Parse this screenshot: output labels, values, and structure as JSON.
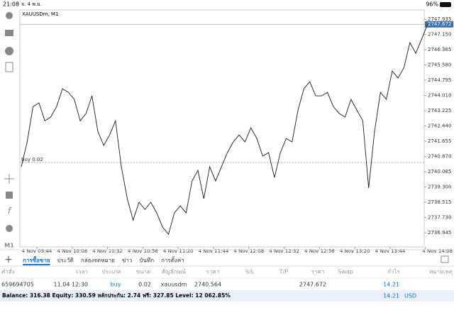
{
  "status_bar": {
    "time": "21:08",
    "date": "จ. 4 พ.ย.",
    "battery": "96%"
  },
  "chart_data": {
    "type": "line",
    "title": "XAUUSDm, M1",
    "series": [
      {
        "name": "XAUUSDm",
        "color": "#1a1a1a",
        "values": [
          2740.34,
          2741.62,
          2743.44,
          2743.63,
          2742.71,
          2742.9,
          2743.44,
          2744.36,
          2744.17,
          2743.81,
          2742.71,
          2743.08,
          2743.99,
          2742.17,
          2741.44,
          2741.98,
          2742.71,
          2740.34,
          2738.7,
          2737.6,
          2738.52,
          2738.15,
          2738.52,
          2737.97,
          2737.24,
          2736.87,
          2737.97,
          2738.33,
          2737.97,
          2739.61,
          2740.16,
          2738.7,
          2740.34,
          2739.61,
          2740.34,
          2741.07,
          2741.62,
          2741.98,
          2741.62,
          2742.35,
          2741.8,
          2740.89,
          2741.07,
          2739.79,
          2741.07,
          2741.8,
          2741.62,
          2743.26,
          2744.36,
          2744.72,
          2743.99,
          2743.99,
          2744.17,
          2743.44,
          2743.08,
          2742.9,
          2743.81,
          2743.26,
          2742.71,
          2739.25,
          2742.17,
          2744.17,
          2743.81,
          2745.27,
          2744.91,
          2745.45,
          2746.73,
          2746.18,
          2746.91,
          2747.672
        ]
      }
    ],
    "xlim": [
      0,
      69
    ],
    "xticks": [
      {
        "value": 2.65,
        "label": "4 Nov 09:44"
      },
      {
        "value": 8.65,
        "label": "4 Nov 10:08"
      },
      {
        "value": 14.65,
        "label": "4 Nov 10:32"
      },
      {
        "value": 20.65,
        "label": "4 Nov 10:56"
      },
      {
        "value": 26.65,
        "label": "4 Nov 11:20"
      },
      {
        "value": 32.65,
        "label": "4 Nov 11:44"
      },
      {
        "value": 38.65,
        "label": "4 Nov 12:08"
      },
      {
        "value": 44.65,
        "label": "4 Nov 12:32"
      },
      {
        "value": 50.65,
        "label": "4 Nov 12:56"
      },
      {
        "value": 56.65,
        "label": "4 Nov 13:20"
      },
      {
        "value": 62.65,
        "label": "4 Nov 13:44"
      },
      {
        "value": 68.65,
        "label": "4 Nov 14:08"
      }
    ],
    "ylim": [
      2736.22,
      2748.41
    ],
    "yticks": [
      2736.945,
      {
        "value": 2737.73,
        "label": "2737.730"
      },
      2738.515,
      {
        "value": 2739.3,
        "label": "2739.300"
      },
      2740.085,
      {
        "value": 2740.87,
        "label": "2740.870"
      },
      2741.655,
      {
        "value": 2742.44,
        "label": "2742.440"
      },
      2743.225,
      {
        "value": 2744.01,
        "label": "2744.010"
      },
      2744.795,
      {
        "value": 2745.58,
        "label": "2745.580"
      },
      2746.365,
      {
        "value": 2747.15,
        "label": "2747.150"
      },
      2747.935
    ],
    "current_price": 2747.672,
    "buy_line": {
      "label": "buy 0.02",
      "value": 2740.564
    }
  },
  "toolbar": {
    "timeframe": "M1"
  },
  "tabs": [
    "การซื้อขาย",
    "ประวัติ",
    "กล่องจดหมาย",
    "ข่าว",
    "บันทึก",
    "การตั้งค่า"
  ],
  "table": {
    "headers": [
      "คำสั่ง",
      "เวลา",
      "ประเภท",
      "ขนาด",
      "สัญลักษณ์",
      "ราคา",
      "S/L",
      "T/P",
      "ราคา",
      "Swap",
      "กำไร",
      "หมายเหตุ"
    ],
    "row": {
      "order": "659694705",
      "time": "11.04 12:30",
      "type": "buy",
      "volume": "0.02",
      "symbol": "xauusdm",
      "open_price": "2740.564",
      "price": "2747.672",
      "profit": "14.21"
    }
  },
  "footer": {
    "summary": "Balance: 316.38 Equity: 330.59 หลักประกัน: 2.74 ฟรี: 327.85 Level: 12 062.85%",
    "profit": "14.21",
    "currency": "USD"
  }
}
